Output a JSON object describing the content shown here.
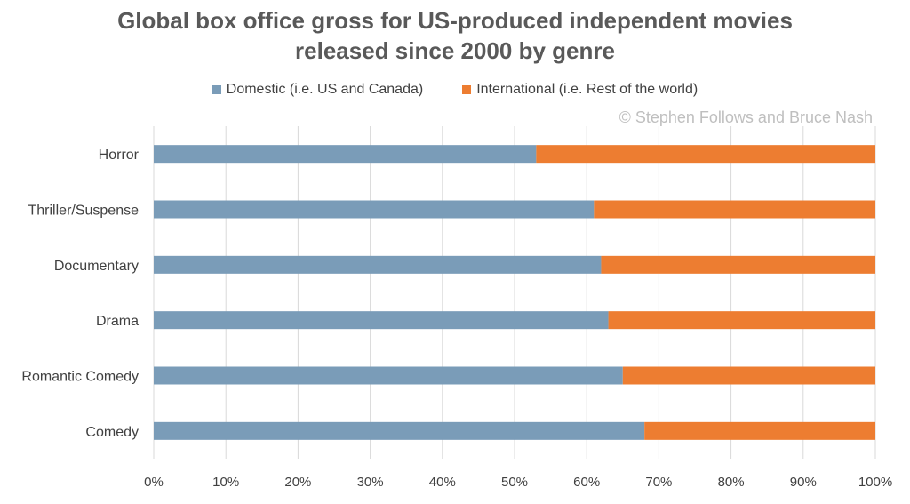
{
  "chart_data": {
    "type": "bar",
    "orientation": "horizontal",
    "stacked": true,
    "title_line1": "Global box office gross for US-produced independent movies",
    "title_line2": "released since 2000 by genre",
    "credit": "© Stephen Follows and Bruce Nash",
    "categories": [
      "Horror",
      "Thriller/Suspense",
      "Documentary",
      "Drama",
      "Romantic Comedy",
      "Comedy"
    ],
    "series": [
      {
        "name": "Domestic (i.e. US and Canada)",
        "color": "#7a9cb8",
        "values": [
          53,
          61,
          62,
          63,
          65,
          68
        ]
      },
      {
        "name": "International (i.e. Rest of the world)",
        "color": "#ed7d31",
        "values": [
          47,
          39,
          38,
          37,
          35,
          32
        ]
      }
    ],
    "xlim": [
      0,
      100
    ],
    "x_ticks": [
      "0%",
      "10%",
      "20%",
      "30%",
      "40%",
      "50%",
      "60%",
      "70%",
      "80%",
      "90%",
      "100%"
    ],
    "grid": "vertical",
    "legend_position": "top"
  }
}
